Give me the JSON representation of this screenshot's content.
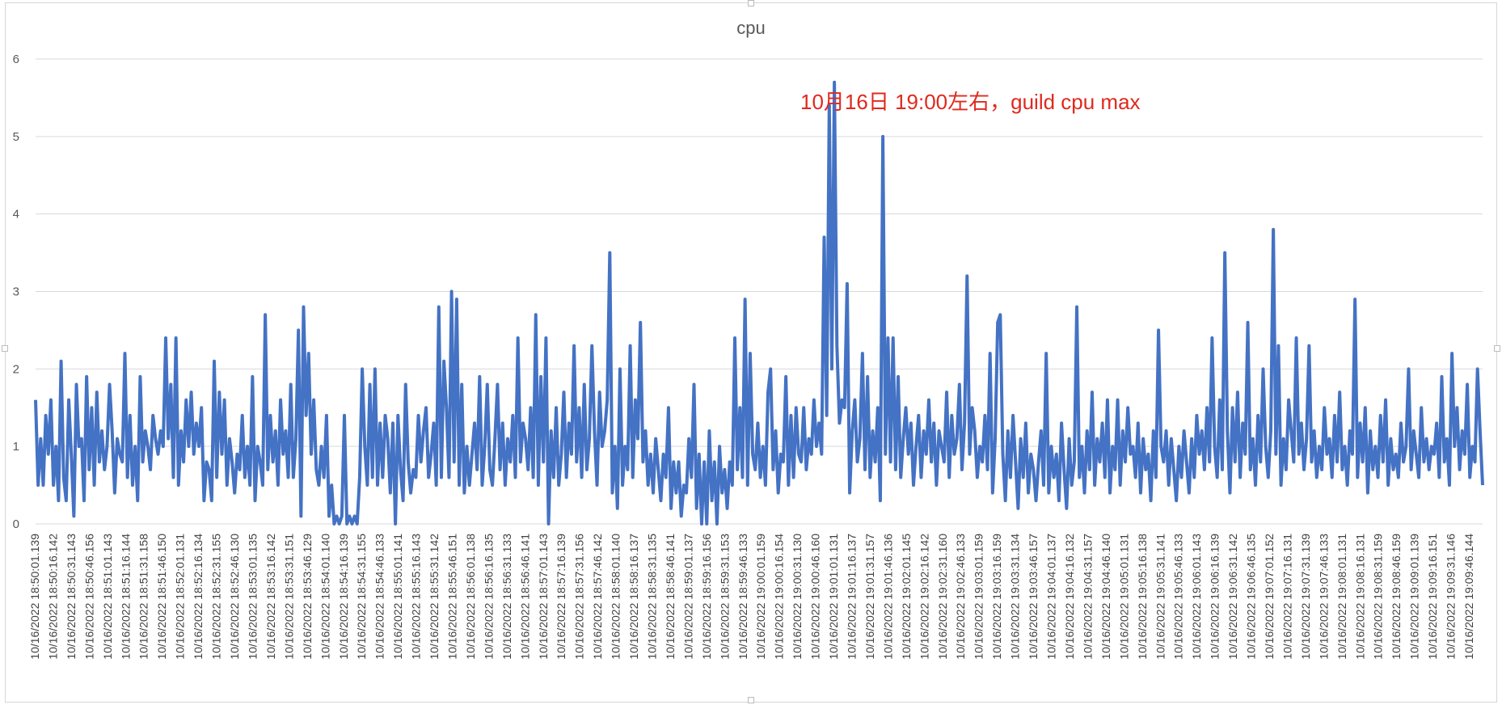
{
  "chart_data": {
    "type": "line",
    "title": "cpu",
    "annotation": "10月16日 19:00左右，guild cpu max",
    "ylim": [
      0,
      6
    ],
    "yticks": [
      0,
      1,
      2,
      3,
      4,
      5,
      6
    ],
    "grid": true,
    "series_color": "#4472c4",
    "xtick_labels": [
      "10/16/2022 18:50:01.139",
      "10/16/2022 18:50:16.142",
      "10/16/2022 18:50:31.143",
      "10/16/2022 18:50:46.156",
      "10/16/2022 18:51:01.143",
      "10/16/2022 18:51:16.144",
      "10/16/2022 18:51:31.158",
      "10/16/2022 18:51:46.150",
      "10/16/2022 18:52:01.131",
      "10/16/2022 18:52:16.134",
      "10/16/2022 18:52:31.155",
      "10/16/2022 18:52:46.130",
      "10/16/2022 18:53:01.135",
      "10/16/2022 18:53:16.142",
      "10/16/2022 18:53:31.151",
      "10/16/2022 18:53:46.129",
      "10/16/2022 18:54:01.140",
      "10/16/2022 18:54:16.139",
      "10/16/2022 18:54:31.155",
      "10/16/2022 18:54:46.133",
      "10/16/2022 18:55:01.141",
      "10/16/2022 18:55:16.143",
      "10/16/2022 18:55:31.142",
      "10/16/2022 18:55:46.151",
      "10/16/2022 18:56:01.138",
      "10/16/2022 18:56:16.135",
      "10/16/2022 18:56:31.133",
      "10/16/2022 18:56:46.141",
      "10/16/2022 18:57:01.143",
      "10/16/2022 18:57:16.139",
      "10/16/2022 18:57:31.156",
      "10/16/2022 18:57:46.142",
      "10/16/2022 18:58:01.140",
      "10/16/2022 18:58:16.137",
      "10/16/2022 18:58:31.135",
      "10/16/2022 18:58:46.141",
      "10/16/2022 18:59:01.137",
      "10/16/2022 18:59:16.156",
      "10/16/2022 18:59:31.153",
      "10/16/2022 18:59:46.133",
      "10/16/2022 19:00:01.159",
      "10/16/2022 19:00:16.154",
      "10/16/2022 19:00:31.130",
      "10/16/2022 19:00:46.160",
      "10/16/2022 19:01:01.131",
      "10/16/2022 19:01:16.137",
      "10/16/2022 19:01:31.157",
      "10/16/2022 19:01:46.136",
      "10/16/2022 19:02:01.145",
      "10/16/2022 19:02:16.142",
      "10/16/2022 19:02:31.160",
      "10/16/2022 19:02:46.133",
      "10/16/2022 19:03:01.159",
      "10/16/2022 19:03:16.159",
      "10/16/2022 19:03:31.134",
      "10/16/2022 19:03:46.157",
      "10/16/2022 19:04:01.137",
      "10/16/2022 19:04:16.132",
      "10/16/2022 19:04:31.157",
      "10/16/2022 19:04:46.140",
      "10/16/2022 19:05:01.131",
      "10/16/2022 19:05:16.138",
      "10/16/2022 19:05:31.141",
      "10/16/2022 19:05:46.133",
      "10/16/2022 19:06:01.143",
      "10/16/2022 19:06:16.139",
      "10/16/2022 19:06:31.142",
      "10/16/2022 19:06:46.135",
      "10/16/2022 19:07:01.152",
      "10/16/2022 19:07:16.131",
      "10/16/2022 19:07:31.139",
      "10/16/2022 19:07:46.133",
      "10/16/2022 19:08:01.131",
      "10/16/2022 19:08:16.131",
      "10/16/2022 19:08:31.159",
      "10/16/2022 19:08:46.159",
      "10/16/2022 19:09:01.139",
      "10/16/2022 19:09:16.151",
      "10/16/2022 19:09:31.146",
      "10/16/2022 19:09:46.144"
    ],
    "values": [
      1.6,
      0.5,
      1.1,
      0.5,
      1.4,
      0.9,
      1.6,
      0.5,
      1.0,
      0.3,
      2.1,
      0.6,
      0.3,
      1.6,
      0.9,
      0.1,
      1.8,
      1.0,
      1.1,
      0.3,
      1.9,
      0.7,
      1.5,
      0.5,
      1.7,
      0.8,
      1.2,
      0.7,
      1.0,
      1.8,
      1.2,
      0.4,
      1.1,
      0.9,
      0.8,
      2.2,
      0.6,
      1.4,
      0.5,
      1.0,
      0.3,
      1.9,
      0.8,
      1.2,
      1.0,
      0.7,
      1.4,
      1.1,
      0.9,
      1.2,
      1.0,
      2.4,
      1.1,
      1.8,
      0.6,
      2.4,
      0.5,
      1.2,
      0.8,
      1.6,
      1.0,
      1.7,
      0.9,
      1.3,
      1.0,
      1.5,
      0.3,
      0.8,
      0.7,
      0.3,
      2.1,
      0.6,
      1.7,
      0.9,
      1.6,
      0.5,
      1.1,
      0.8,
      0.4,
      0.9,
      0.7,
      1.4,
      0.6,
      1.0,
      0.5,
      1.9,
      0.3,
      1.0,
      0.8,
      0.5,
      2.7,
      0.7,
      1.4,
      0.8,
      1.2,
      0.5,
      1.6,
      0.9,
      1.2,
      0.6,
      1.8,
      0.6,
      1.1,
      2.5,
      0.1,
      2.8,
      1.4,
      2.2,
      0.9,
      1.6,
      0.7,
      0.5,
      1.0,
      0.6,
      1.4,
      0.1,
      0.5,
      0.0,
      0.1,
      0.0,
      0.1,
      1.4,
      0.0,
      0.1,
      0.0,
      0.1,
      0.0,
      0.6,
      2.0,
      1.0,
      0.5,
      1.8,
      0.6,
      2.0,
      0.5,
      1.3,
      0.6,
      1.4,
      1.1,
      0.4,
      1.3,
      0.0,
      1.4,
      0.7,
      0.3,
      1.8,
      0.8,
      0.4,
      0.7,
      0.6,
      1.4,
      0.8,
      1.2,
      1.5,
      0.6,
      0.9,
      1.3,
      0.5,
      2.8,
      0.6,
      2.1,
      1.5,
      0.6,
      3.0,
      0.8,
      2.9,
      0.5,
      1.8,
      0.4,
      1.0,
      0.5,
      0.9,
      1.3,
      0.7,
      1.9,
      0.5,
      1.0,
      1.8,
      0.7,
      0.5,
      1.1,
      1.8,
      0.7,
      1.3,
      0.5,
      1.1,
      0.8,
      1.4,
      0.6,
      2.4,
      0.8,
      1.3,
      1.1,
      0.7,
      1.5,
      0.6,
      2.7,
      0.5,
      1.9,
      0.8,
      2.4,
      0.0,
      1.2,
      0.6,
      1.5,
      0.5,
      0.9,
      1.7,
      0.6,
      1.3,
      0.9,
      2.3,
      0.8,
      1.5,
      0.6,
      1.8,
      0.7,
      1.1,
      2.3,
      1.2,
      0.5,
      1.7,
      1.0,
      1.2,
      1.6,
      3.5,
      0.4,
      1.0,
      0.2,
      2.0,
      0.5,
      1.0,
      0.7,
      2.3,
      0.6,
      1.6,
      1.1,
      2.6,
      0.8,
      1.2,
      0.5,
      0.9,
      0.4,
      1.1,
      0.7,
      0.3,
      0.9,
      0.6,
      1.5,
      0.2,
      0.8,
      0.4,
      0.8,
      0.1,
      0.5,
      0.4,
      1.1,
      0.6,
      1.8,
      0.2,
      0.9,
      0.0,
      0.8,
      0.0,
      1.2,
      0.3,
      0.8,
      0.0,
      1.0,
      0.4,
      0.7,
      0.2,
      0.8,
      0.5,
      2.4,
      0.7,
      1.5,
      0.6,
      2.9,
      0.5,
      2.2,
      0.9,
      0.7,
      1.3,
      0.6,
      1.0,
      0.5,
      1.7,
      2.0,
      0.7,
      1.2,
      0.4,
      0.9,
      0.8,
      1.9,
      0.5,
      1.4,
      0.6,
      1.5,
      0.9,
      0.8,
      1.5,
      0.7,
      1.1,
      0.9,
      1.6,
      1.0,
      1.3,
      0.9,
      3.7,
      1.4,
      5.4,
      2.0,
      5.7,
      2.3,
      1.3,
      1.6,
      1.5,
      3.1,
      0.4,
      1.2,
      1.6,
      0.8,
      1.1,
      2.2,
      0.7,
      1.9,
      0.6,
      1.2,
      0.8,
      1.5,
      0.3,
      5.0,
      0.9,
      2.4,
      0.8,
      2.4,
      0.7,
      1.9,
      0.6,
      1.1,
      1.5,
      0.9,
      1.3,
      0.5,
      1.0,
      1.4,
      0.6,
      1.2,
      0.9,
      1.6,
      0.8,
      1.3,
      0.5,
      1.2,
      1.0,
      0.8,
      1.7,
      0.6,
      1.4,
      0.9,
      1.1,
      1.8,
      0.7,
      1.3,
      3.2,
      0.9,
      1.5,
      1.2,
      0.6,
      1.0,
      0.8,
      1.4,
      0.7,
      2.2,
      0.4,
      1.1,
      2.6,
      2.7,
      0.9,
      0.3,
      1.2,
      0.6,
      1.4,
      0.8,
      0.2,
      1.1,
      0.6,
      1.3,
      0.4,
      0.9,
      0.7,
      0.3,
      0.8,
      1.2,
      0.5,
      2.2,
      0.4,
      1.0,
      0.6,
      0.9,
      0.3,
      1.3,
      0.7,
      0.2,
      1.1,
      0.5,
      0.8,
      2.8,
      0.6,
      1.0,
      0.4,
      1.2,
      0.7,
      1.7,
      0.5,
      1.1,
      0.8,
      1.3,
      0.6,
      1.6,
      0.4,
      1.0,
      0.7,
      1.6,
      0.5,
      1.2,
      0.8,
      1.5,
      0.9,
      1.0,
      0.6,
      1.3,
      0.4,
      1.1,
      0.7,
      0.9,
      0.3,
      1.2,
      0.6,
      2.5,
      1.0,
      0.8,
      1.2,
      0.5,
      1.1,
      0.7,
      0.3,
      1.0,
      0.6,
      1.2,
      0.8,
      0.4,
      1.1,
      0.6,
      1.4,
      0.9,
      1.2,
      0.7,
      1.5,
      0.8,
      2.4,
      1.0,
      0.6,
      1.6,
      0.7,
      3.5,
      1.2,
      0.4,
      1.5,
      0.8,
      1.7,
      0.6,
      1.3,
      0.9,
      2.6,
      0.7,
      1.1,
      0.5,
      1.4,
      0.8,
      2.0,
      1.0,
      0.6,
      1.2,
      3.8,
      0.9,
      2.3,
      0.5,
      1.1,
      0.7,
      1.6,
      1.2,
      0.8,
      2.4,
      0.9,
      1.3,
      0.7,
      1.1,
      2.3,
      0.8,
      1.2,
      0.6,
      1.0,
      0.7,
      1.5,
      0.9,
      1.1,
      0.6,
      1.4,
      0.8,
      1.7,
      0.7,
      1.0,
      0.5,
      1.2,
      0.9,
      2.9,
      0.6,
      1.3,
      0.8,
      1.5,
      0.4,
      1.2,
      0.7,
      1.0,
      0.6,
      1.4,
      0.8,
      1.6,
      0.5,
      1.1,
      0.7,
      0.9,
      0.6,
      1.3,
      0.8,
      1.0,
      2.0,
      0.7,
      1.2,
      0.9,
      0.6,
      1.5,
      0.8,
      1.1,
      0.7,
      1.0,
      0.9,
      1.3,
      0.6,
      1.9,
      0.8,
      1.1,
      0.5,
      2.2,
      1.0,
      1.5,
      0.7,
      1.2,
      0.9,
      1.8,
      0.6,
      1.0,
      0.8,
      2.0,
      1.2,
      0.5
    ]
  }
}
